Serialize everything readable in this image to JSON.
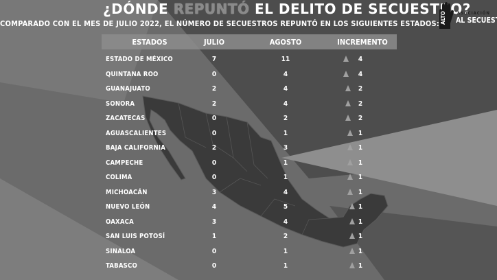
{
  "title": {
    "part1": "¿DÓNDE",
    "highlight": "REPUNTÓ",
    "part2": "EL DELITO DE SECUESTRO?"
  },
  "subtitle": "COMPARADO CON EL MES DE JULIO 2022, EL NÚMERO DE SECUESTROS REPUNTÓ EN LOS SIGUIENTES  ESTADOS:",
  "logo": {
    "assoc": "ASOCIACIÓN",
    "alto": "ALTO",
    "name": "AL SECUESTRO"
  },
  "columns": {
    "state": "ESTADOS",
    "july": "JULIO",
    "august": "AGOSTO",
    "increase": "INCREMENTO"
  },
  "rows": [
    {
      "state": "ESTADO DE MÉXICO",
      "july": "7",
      "august": "11",
      "increase": "4"
    },
    {
      "state": "QUINTANA ROO",
      "july": "0",
      "august": "4",
      "increase": "4"
    },
    {
      "state": "GUANAJUATO",
      "july": "2",
      "august": "4",
      "increase": "2"
    },
    {
      "state": "SONORA",
      "july": "2",
      "august": "4",
      "increase": "2"
    },
    {
      "state": "ZACATECAS",
      "july": "0",
      "august": "2",
      "increase": "2"
    },
    {
      "state": "AGUASCALIENTES",
      "july": "0",
      "august": "1",
      "increase": "1"
    },
    {
      "state": "BAJA CALIFORNIA",
      "july": "2",
      "august": "3",
      "increase": "1"
    },
    {
      "state": "CAMPECHE",
      "july": "0",
      "august": "1",
      "increase": "1"
    },
    {
      "state": "COLIMA",
      "july": "0",
      "august": "1",
      "increase": "1"
    },
    {
      "state": "MICHOACÁN",
      "july": "3",
      "august": "4",
      "increase": "1"
    },
    {
      "state": "NUEVO LEÓN",
      "july": "4",
      "august": "5",
      "increase": "1"
    },
    {
      "state": "OAXACA",
      "july": "3",
      "august": "4",
      "increase": "1"
    },
    {
      "state": "SAN LUIS POTOSÍ",
      "july": "1",
      "august": "2",
      "increase": "1"
    },
    {
      "state": "SINALOA",
      "july": "0",
      "august": "1",
      "increase": "1"
    },
    {
      "state": "TABASCO",
      "july": "0",
      "august": "1",
      "increase": "1"
    }
  ],
  "colors": {
    "background": "#6e6e6e",
    "dark_band": "#4a4a4a",
    "light_band": "#9a9a9a",
    "map": "#3c3c3c"
  }
}
